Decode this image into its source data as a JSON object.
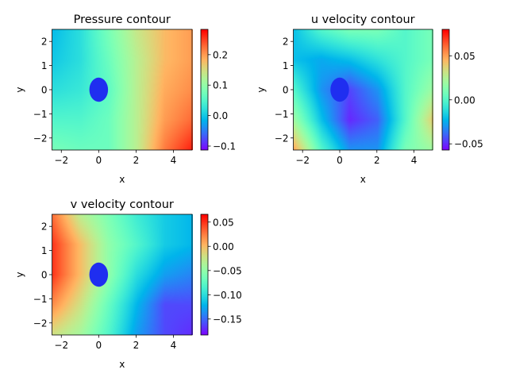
{
  "chart_data": [
    {
      "type": "heatmap",
      "title": "Pressure contour",
      "xlabel": "x",
      "ylabel": "y",
      "xlim": [
        -2.5,
        5
      ],
      "ylim": [
        -2.5,
        2.5
      ],
      "xticks": [
        -2,
        0,
        2,
        4
      ],
      "xtick_labels": [
        "−2",
        "0",
        "2",
        "4"
      ],
      "yticks": [
        -2,
        -1,
        0,
        1,
        2
      ],
      "ytick_labels": [
        "−2",
        "−1",
        "0",
        "1",
        "2"
      ],
      "colormap": "rainbow",
      "clim": [
        -0.113,
        0.283
      ],
      "cbar_ticks": [
        -0.1,
        0.0,
        0.1,
        0.2
      ],
      "cbar_tick_labels": [
        "−0.1",
        "0.0",
        "0.1",
        "0.2"
      ],
      "grid_x": [
        -2.5,
        -1,
        0.5,
        2,
        3.5,
        5
      ],
      "grid_y": [
        2.5,
        1.25,
        0,
        -1.25,
        -2.5
      ],
      "values": [
        [
          -0.01,
          0.02,
          0.08,
          0.14,
          0.18,
          0.2
        ],
        [
          0.0,
          0.02,
          0.07,
          0.13,
          0.18,
          0.2
        ],
        [
          0.02,
          0.03,
          0.06,
          0.13,
          0.19,
          0.21
        ],
        [
          0.05,
          0.05,
          0.07,
          0.13,
          0.2,
          0.23
        ],
        [
          0.08,
          0.07,
          0.07,
          0.13,
          0.22,
          0.27
        ]
      ],
      "obstacle": {
        "shape": "circle",
        "center": [
          0,
          0
        ],
        "radius": 0.5,
        "color": "#1f2ef0"
      }
    },
    {
      "type": "heatmap",
      "title": "u velocity contour",
      "xlabel": "x",
      "ylabel": "y",
      "xlim": [
        -2.5,
        5
      ],
      "ylim": [
        -2.5,
        2.5
      ],
      "xticks": [
        -2,
        0,
        2,
        4
      ],
      "xtick_labels": [
        "−2",
        "0",
        "2",
        "4"
      ],
      "yticks": [
        -2,
        -1,
        0,
        1,
        2
      ],
      "ytick_labels": [
        "−2",
        "−1",
        "0",
        "1",
        "2"
      ],
      "colormap": "rainbow",
      "clim": [
        -0.057,
        0.08
      ],
      "cbar_ticks": [
        -0.05,
        0.0,
        0.05
      ],
      "cbar_tick_labels": [
        "−0.05",
        "0.00",
        "0.05"
      ],
      "grid_x": [
        -2.5,
        -1,
        0.5,
        2,
        3.5,
        5
      ],
      "grid_y": [
        2.5,
        1.25,
        0,
        -1.25,
        -2.5
      ],
      "values": [
        [
          -0.02,
          0.0,
          0.01,
          0.01,
          0.0,
          0.01
        ],
        [
          -0.02,
          -0.025,
          -0.02,
          -0.01,
          0.0,
          0.01
        ],
        [
          0.0,
          -0.03,
          -0.045,
          -0.03,
          0.0,
          0.02
        ],
        [
          0.02,
          -0.02,
          -0.05,
          -0.04,
          0.0,
          0.04
        ],
        [
          0.05,
          0.0,
          -0.03,
          -0.03,
          0.01,
          0.02
        ]
      ],
      "obstacle": {
        "shape": "circle",
        "center": [
          0,
          0
        ],
        "radius": 0.5,
        "color": "#1f2ef0"
      }
    },
    {
      "type": "heatmap",
      "title": "v velocity contour",
      "xlabel": "x",
      "ylabel": "y",
      "xlim": [
        -2.5,
        5
      ],
      "ylim": [
        -2.5,
        2.5
      ],
      "xticks": [
        -2,
        0,
        2,
        4
      ],
      "xtick_labels": [
        "−2",
        "0",
        "2",
        "4"
      ],
      "yticks": [
        -2,
        -1,
        0,
        1,
        2
      ],
      "ytick_labels": [
        "−2",
        "−1",
        "0",
        "1",
        "2"
      ],
      "colormap": "rainbow",
      "clim": [
        -0.183,
        0.066
      ],
      "cbar_ticks": [
        -0.15,
        -0.1,
        -0.05,
        0.0,
        0.05
      ],
      "cbar_tick_labels": [
        "−0.15",
        "−0.10",
        "−0.05",
        "0.00",
        "0.05"
      ],
      "grid_x": [
        -2.5,
        -1,
        0.5,
        2,
        3.5,
        5
      ],
      "grid_y": [
        2.5,
        1.25,
        0,
        -1.25,
        -2.5
      ],
      "values": [
        [
          0.03,
          -0.03,
          -0.06,
          -0.09,
          -0.11,
          -0.12
        ],
        [
          0.05,
          0.0,
          -0.05,
          -0.08,
          -0.11,
          -0.12
        ],
        [
          0.05,
          0.0,
          -0.05,
          -0.1,
          -0.13,
          -0.14
        ],
        [
          0.02,
          -0.02,
          -0.07,
          -0.12,
          -0.16,
          -0.16
        ],
        [
          -0.02,
          -0.04,
          -0.08,
          -0.13,
          -0.16,
          -0.17
        ]
      ],
      "obstacle": {
        "shape": "circle",
        "center": [
          0,
          0
        ],
        "radius": 0.5,
        "color": "#1f2ef0"
      }
    }
  ]
}
